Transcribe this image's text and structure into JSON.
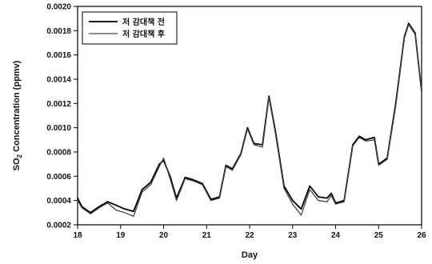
{
  "chart_data": {
    "type": "line",
    "xlabel": "Day",
    "ylabel_main": "SO",
    "ylabel_sub": "2",
    "ylabel_rest": " Concentration (ppmv)",
    "xlim": [
      18,
      26
    ],
    "ylim": [
      0.0002,
      0.002
    ],
    "x_ticks": [
      18,
      19,
      20,
      21,
      22,
      23,
      24,
      25,
      26
    ],
    "x_tick_labels": [
      "18",
      "19",
      "20",
      "21",
      "22",
      "23",
      "24",
      "25",
      "26"
    ],
    "y_ticks": [
      0.0002,
      0.0004,
      0.0006,
      0.0008,
      0.001,
      0.0012,
      0.0014,
      0.0016,
      0.0018,
      0.002
    ],
    "y_tick_labels": [
      "0.0002",
      "0.0004",
      "0.0006",
      "0.0008",
      "0.0010",
      "0.0012",
      "0.0014",
      "0.0016",
      "0.0018",
      "0.0020"
    ],
    "grid": false,
    "legend_position": "top-left",
    "series": [
      {
        "name": "저 감대책 전",
        "color": "#000000",
        "x": [
          18.0,
          18.1,
          18.3,
          18.5,
          18.7,
          18.9,
          19.1,
          19.3,
          19.5,
          19.7,
          19.9,
          20.0,
          20.15,
          20.3,
          20.5,
          20.7,
          20.9,
          21.1,
          21.3,
          21.45,
          21.6,
          21.8,
          21.95,
          22.1,
          22.3,
          22.45,
          22.6,
          22.8,
          23.0,
          23.2,
          23.4,
          23.6,
          23.8,
          23.9,
          24.0,
          24.2,
          24.4,
          24.55,
          24.7,
          24.9,
          25.0,
          25.2,
          25.4,
          25.6,
          25.7,
          25.85,
          26.0
        ],
        "y": [
          0.00042,
          0.00035,
          0.0003,
          0.00035,
          0.00039,
          0.00036,
          0.00033,
          0.00031,
          0.00049,
          0.00055,
          0.0007,
          0.00073,
          0.0006,
          0.00042,
          0.00059,
          0.00057,
          0.00054,
          0.00041,
          0.00043,
          0.00069,
          0.00066,
          0.00079,
          0.001,
          0.00087,
          0.00086,
          0.00126,
          0.00097,
          0.00052,
          0.0004,
          0.00033,
          0.00052,
          0.00043,
          0.00042,
          0.00046,
          0.00038,
          0.0004,
          0.00086,
          0.00093,
          0.0009,
          0.00092,
          0.0007,
          0.00075,
          0.0012,
          0.00175,
          0.00186,
          0.00178,
          0.0013
        ]
      },
      {
        "name": "저 감대책 후",
        "color": "#444444",
        "x": [
          18.0,
          18.1,
          18.3,
          18.5,
          18.7,
          18.9,
          19.1,
          19.3,
          19.5,
          19.7,
          19.9,
          20.0,
          20.15,
          20.3,
          20.5,
          20.7,
          20.9,
          21.1,
          21.3,
          21.45,
          21.6,
          21.8,
          21.95,
          22.1,
          22.3,
          22.45,
          22.6,
          22.8,
          23.0,
          23.2,
          23.4,
          23.6,
          23.8,
          23.9,
          24.0,
          24.2,
          24.4,
          24.55,
          24.7,
          24.9,
          25.0,
          25.2,
          25.4,
          25.6,
          25.7,
          25.85,
          26.0
        ],
        "y": [
          0.0004,
          0.00034,
          0.00029,
          0.00034,
          0.00038,
          0.00032,
          0.0003,
          0.00027,
          0.00047,
          0.00053,
          0.00068,
          0.00075,
          0.00058,
          0.0004,
          0.00058,
          0.00056,
          0.00053,
          0.0004,
          0.00042,
          0.00068,
          0.00065,
          0.00078,
          0.00099,
          0.00086,
          0.00084,
          0.00125,
          0.00095,
          0.0005,
          0.00037,
          0.00028,
          0.00049,
          0.0004,
          0.00039,
          0.00044,
          0.00037,
          0.00039,
          0.00085,
          0.00092,
          0.00089,
          0.0009,
          0.00069,
          0.00074,
          0.00118,
          0.00174,
          0.00185,
          0.00177,
          0.0013
        ]
      }
    ],
    "legend": [
      {
        "label": "저 감대책 전"
      },
      {
        "label": "저 감대책 후"
      }
    ]
  }
}
